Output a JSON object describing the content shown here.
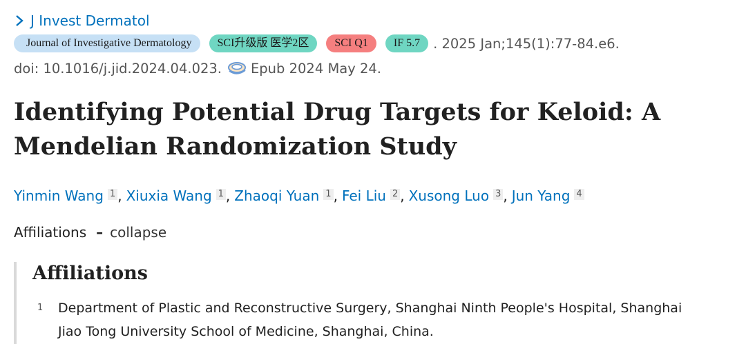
{
  "journal_short": "J Invest Dermatol",
  "badges": {
    "journal": "Journal of Investigative Dermatology",
    "sci_tier": "SCI升级版 医学2区",
    "quartile": "SCI Q1",
    "impact": "IF 5.7"
  },
  "citation": ". 2025 Jan;145(1):77-84.e6.",
  "doi": "doi: 10.1016/j.jid.2024.04.023.",
  "epub": "Epub 2024 May 24.",
  "icons": {
    "journal_chevron": "chevron-right-icon",
    "epub": "epub-icon"
  },
  "title": "Identifying Potential Drug Targets for Keloid: A Mendelian Randomization Study",
  "authors": [
    {
      "name": "Yinmin Wang",
      "aff": "1"
    },
    {
      "name": "Xiuxia Wang",
      "aff": "1"
    },
    {
      "name": "Zhaoqi Yuan",
      "aff": "1"
    },
    {
      "name": "Fei Liu",
      "aff": "2"
    },
    {
      "name": "Xusong Luo",
      "aff": "3"
    },
    {
      "name": "Jun Yang",
      "aff": "4"
    }
  ],
  "author_separator": ",",
  "affiliations_toggle": {
    "label": "Affiliations",
    "dash": "–",
    "action": "collapse"
  },
  "affiliations": {
    "heading": "Affiliations",
    "items": [
      {
        "number": "1",
        "text": "Department of Plastic and Reconstructive Surgery, Shanghai Ninth People's Hospital, Shanghai Jiao Tong University School of Medicine, Shanghai, China."
      }
    ]
  },
  "colors": {
    "link": "#0071bc",
    "badge_journal": "#c6e0f5",
    "badge_sci": "#6fd6c2",
    "badge_q1": "#f57f7f",
    "badge_if": "#6fd6c2"
  }
}
